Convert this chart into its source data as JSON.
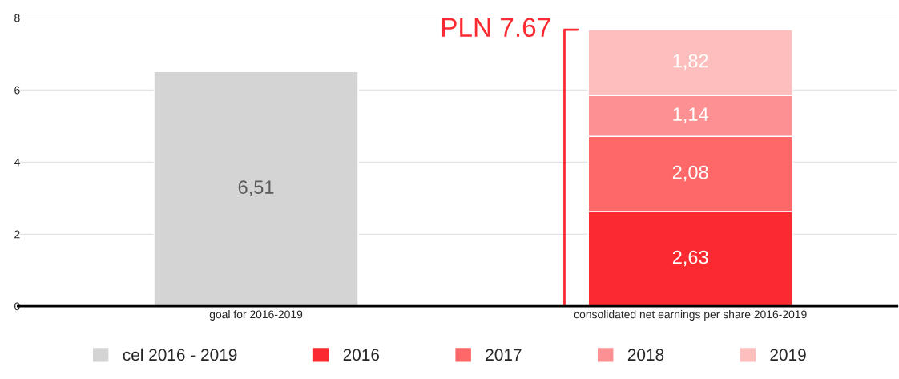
{
  "chart_data": {
    "type": "bar",
    "stacked": true,
    "categories": [
      "goal for 2016-2019",
      "consolidated net earnings per share 2016-2019"
    ],
    "series": [
      {
        "name": "cel 2016 - 2019",
        "color": "#d4d4d4",
        "values": [
          6.51,
          null
        ],
        "value_labels": [
          "6,51",
          null
        ]
      },
      {
        "name": "2016",
        "color": "#fb2a30",
        "values": [
          null,
          2.63
        ],
        "value_labels": [
          null,
          "2,63"
        ]
      },
      {
        "name": "2017",
        "color": "#fe6869",
        "values": [
          null,
          2.08
        ],
        "value_labels": [
          null,
          "2,08"
        ]
      },
      {
        "name": "2018",
        "color": "#fd9092",
        "values": [
          null,
          1.14
        ],
        "value_labels": [
          null,
          "1,14"
        ]
      },
      {
        "name": "2019",
        "color": "#fdbebe",
        "values": [
          null,
          1.82
        ],
        "value_labels": [
          null,
          "1,82"
        ]
      }
    ],
    "ylim": [
      0,
      8
    ],
    "yticks": [
      0,
      2,
      4,
      6,
      8
    ],
    "grid": "y",
    "legend": "bottom",
    "annotations": [
      "PLN 7.67"
    ]
  }
}
